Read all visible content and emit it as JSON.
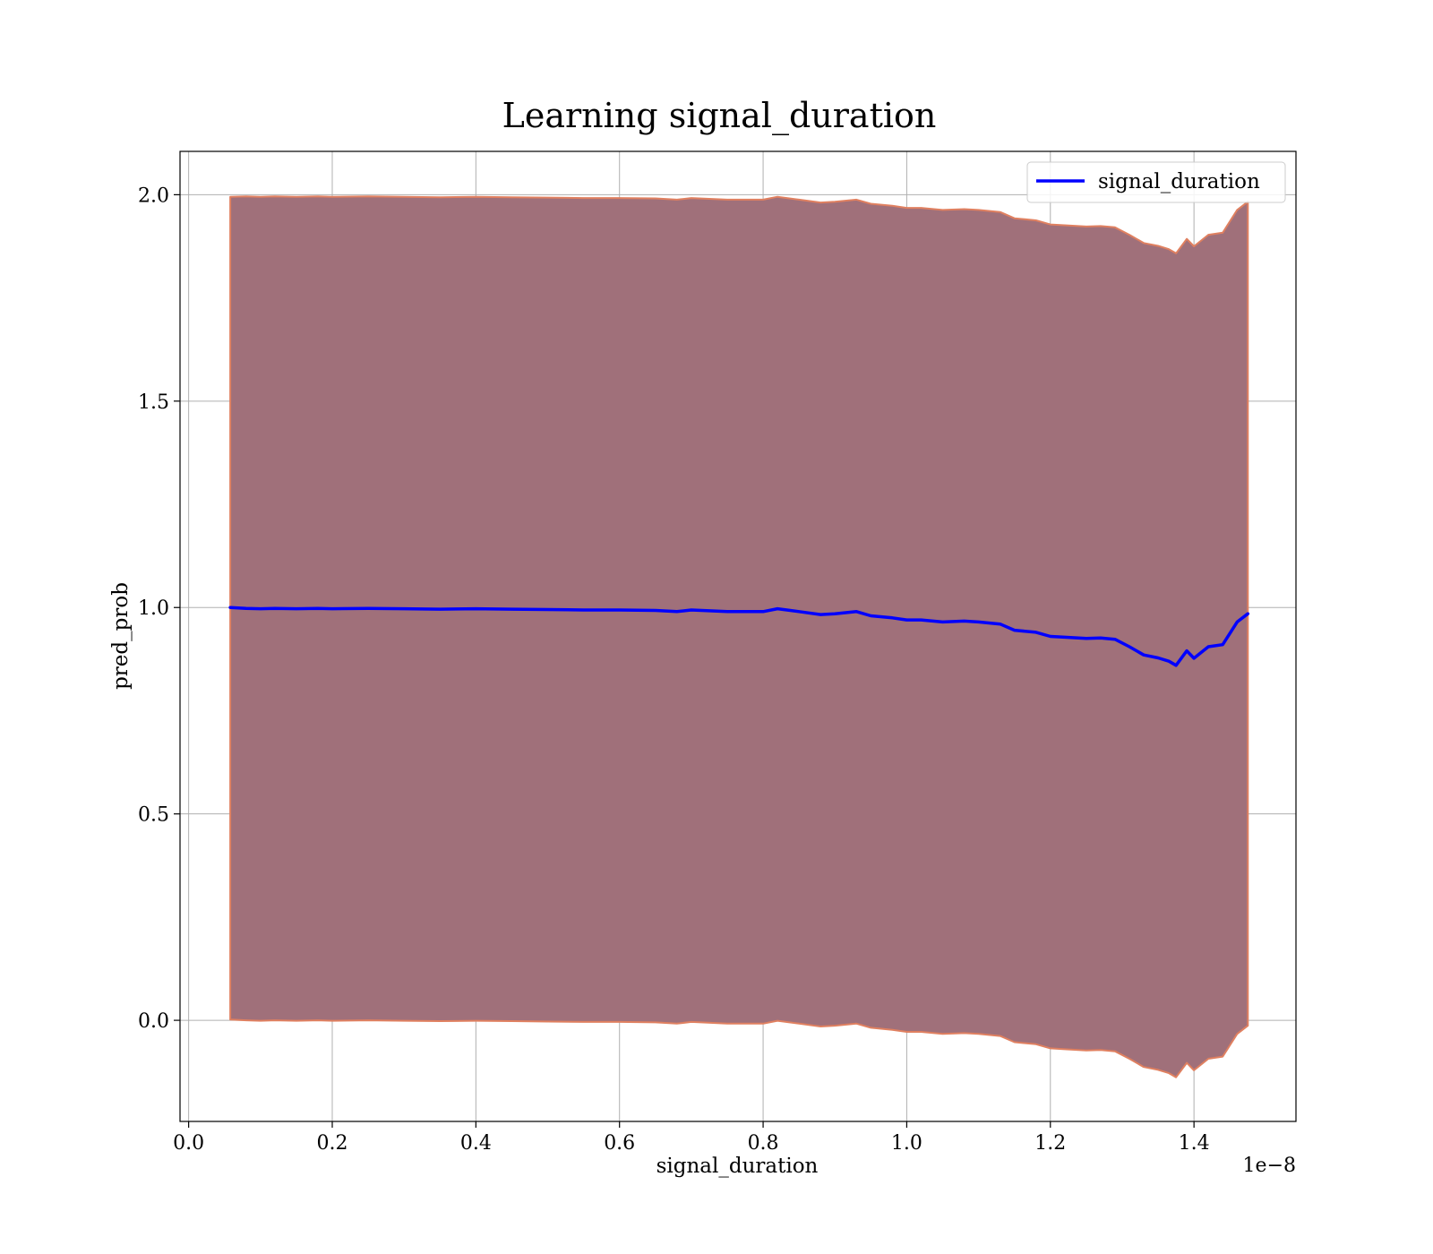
{
  "chart_data": {
    "type": "line",
    "title": "Learning signal_duration",
    "xlabel": "signal_duration",
    "ylabel": "pred_prob",
    "x_offset_label": "1e−8",
    "x_scale_exponent": -8,
    "xlim": [
      -0.012,
      1.542
    ],
    "ylim": [
      -0.245,
      2.105
    ],
    "xticks": [
      0.0,
      0.2,
      0.4,
      0.6,
      0.8,
      1.0,
      1.2,
      1.4
    ],
    "xtick_labels": [
      "0.0",
      "0.2",
      "0.4",
      "0.6",
      "0.8",
      "1.0",
      "1.2",
      "1.4"
    ],
    "yticks": [
      0.0,
      0.5,
      1.0,
      1.5,
      2.0
    ],
    "ytick_labels": [
      "0.0",
      "0.5",
      "1.0",
      "1.5",
      "2.0"
    ],
    "grid": true,
    "legend_position": "top-right",
    "colors": {
      "line": "#0000ff",
      "band_fill": "#a0707a",
      "band_edge": "#e08060",
      "grid": "#b0b0b0",
      "axes": "#000000"
    },
    "series": [
      {
        "name": "signal_duration",
        "x": [
          0.058,
          0.08,
          0.1,
          0.12,
          0.15,
          0.18,
          0.2,
          0.25,
          0.3,
          0.35,
          0.4,
          0.45,
          0.5,
          0.55,
          0.6,
          0.65,
          0.68,
          0.7,
          0.75,
          0.8,
          0.82,
          0.85,
          0.88,
          0.9,
          0.93,
          0.95,
          0.98,
          1.0,
          1.02,
          1.05,
          1.08,
          1.1,
          1.13,
          1.15,
          1.18,
          1.2,
          1.22,
          1.25,
          1.27,
          1.29,
          1.31,
          1.33,
          1.35,
          1.365,
          1.375,
          1.39,
          1.4,
          1.42,
          1.44,
          1.46,
          1.475
        ],
        "y": [
          1.0,
          0.998,
          0.997,
          0.998,
          0.997,
          0.998,
          0.997,
          0.998,
          0.997,
          0.996,
          0.997,
          0.996,
          0.995,
          0.994,
          0.994,
          0.993,
          0.99,
          0.994,
          0.99,
          0.99,
          0.997,
          0.99,
          0.983,
          0.985,
          0.99,
          0.98,
          0.975,
          0.97,
          0.97,
          0.965,
          0.967,
          0.965,
          0.96,
          0.945,
          0.94,
          0.93,
          0.928,
          0.925,
          0.926,
          0.923,
          0.905,
          0.885,
          0.878,
          0.87,
          0.86,
          0.895,
          0.877,
          0.905,
          0.91,
          0.965,
          0.985
        ],
        "band_upper": [
          1.995,
          1.996,
          1.995,
          1.996,
          1.995,
          1.996,
          1.995,
          1.996,
          1.995,
          1.994,
          1.995,
          1.994,
          1.993,
          1.992,
          1.992,
          1.991,
          1.988,
          1.992,
          1.988,
          1.988,
          1.995,
          1.988,
          1.981,
          1.983,
          1.988,
          1.978,
          1.973,
          1.968,
          1.968,
          1.963,
          1.965,
          1.963,
          1.958,
          1.943,
          1.938,
          1.928,
          1.926,
          1.923,
          1.924,
          1.921,
          1.903,
          1.883,
          1.876,
          1.868,
          1.858,
          1.893,
          1.875,
          1.903,
          1.908,
          1.963,
          1.983
        ],
        "band_lower": [
          0.002,
          0.0,
          -0.001,
          0.0,
          -0.001,
          0.0,
          -0.001,
          0.0,
          -0.001,
          -0.002,
          -0.001,
          -0.002,
          -0.003,
          -0.004,
          -0.004,
          -0.005,
          -0.008,
          -0.004,
          -0.008,
          -0.008,
          -0.001,
          -0.008,
          -0.015,
          -0.013,
          -0.008,
          -0.018,
          -0.023,
          -0.028,
          -0.028,
          -0.033,
          -0.031,
          -0.033,
          -0.038,
          -0.053,
          -0.058,
          -0.068,
          -0.07,
          -0.073,
          -0.072,
          -0.075,
          -0.093,
          -0.113,
          -0.12,
          -0.128,
          -0.138,
          -0.103,
          -0.121,
          -0.093,
          -0.088,
          -0.033,
          -0.013
        ]
      }
    ]
  }
}
